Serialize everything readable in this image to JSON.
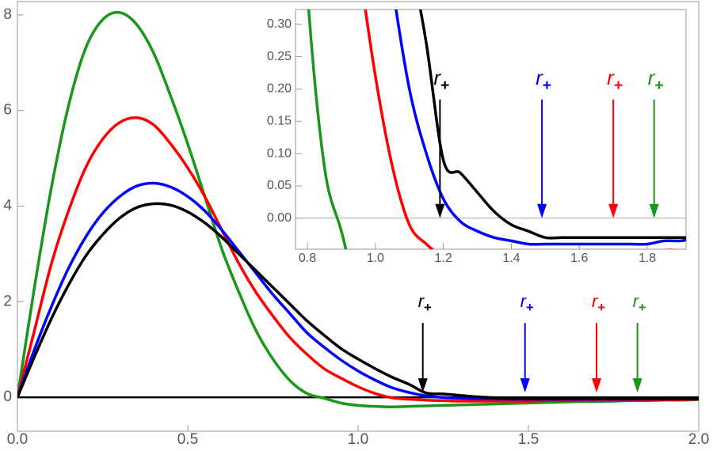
{
  "chart_data": [
    {
      "type": "line",
      "x": [
        0,
        0.05,
        0.1,
        0.15,
        0.2,
        0.25,
        0.3,
        0.35,
        0.4,
        0.45,
        0.5,
        0.55,
        0.6,
        0.65,
        0.7,
        0.75,
        0.8,
        0.85,
        0.9,
        0.95,
        1.0,
        1.05,
        1.1,
        1.15,
        1.2,
        1.25,
        1.3,
        1.35,
        1.4,
        1.45,
        1.5,
        1.55,
        1.6,
        1.65,
        1.7,
        1.75,
        1.8,
        1.85,
        1.9,
        1.95,
        2.0
      ],
      "series": [
        {
          "color": "#1a961a",
          "values": [
            0,
            2.3,
            4.4,
            6.1,
            7.3,
            7.9,
            8.05,
            7.8,
            7.2,
            6.3,
            5.3,
            4.2,
            3.1,
            2.2,
            1.4,
            0.8,
            0.35,
            0.08,
            -0.02,
            -0.12,
            -0.17,
            -0.19,
            -0.2,
            -0.19,
            -0.18,
            -0.17,
            -0.16,
            -0.15,
            -0.14,
            -0.13,
            -0.12,
            -0.11,
            -0.1,
            -0.09,
            -0.09,
            -0.08,
            -0.07,
            -0.07,
            -0.06,
            -0.06,
            -0.05
          ]
        },
        {
          "color": "#ff0000",
          "values": [
            0,
            1.4,
            2.8,
            3.9,
            4.8,
            5.4,
            5.75,
            5.85,
            5.7,
            5.3,
            4.8,
            4.2,
            3.5,
            2.8,
            2.2,
            1.7,
            1.25,
            0.9,
            0.6,
            0.4,
            0.22,
            0.08,
            -0.01,
            -0.04,
            -0.06,
            -0.07,
            -0.08,
            -0.08,
            -0.08,
            -0.08,
            -0.08,
            -0.07,
            -0.07,
            -0.07,
            -0.06,
            -0.06,
            -0.06,
            -0.05,
            -0.05,
            -0.05,
            -0.04
          ]
        },
        {
          "color": "#0000ff",
          "values": [
            0,
            1.0,
            1.9,
            2.7,
            3.35,
            3.85,
            4.2,
            4.42,
            4.48,
            4.4,
            4.2,
            3.9,
            3.5,
            3.05,
            2.6,
            2.15,
            1.75,
            1.35,
            1.05,
            0.78,
            0.55,
            0.36,
            0.2,
            0.1,
            0.03,
            -0.005,
            -0.02,
            -0.03,
            -0.035,
            -0.04,
            -0.04,
            -0.04,
            -0.04,
            -0.04,
            -0.04,
            -0.04,
            -0.04,
            -0.035,
            -0.035,
            -0.03,
            -0.03
          ]
        },
        {
          "color": "#000000",
          "values": [
            0,
            0.85,
            1.65,
            2.35,
            2.95,
            3.4,
            3.75,
            3.97,
            4.05,
            4.02,
            3.88,
            3.65,
            3.35,
            3.0,
            2.65,
            2.3,
            1.95,
            1.6,
            1.3,
            1.02,
            0.8,
            0.6,
            0.42,
            0.27,
            0.09,
            0.07,
            0.04,
            0.01,
            -0.01,
            -0.02,
            -0.03,
            -0.03,
            -0.03,
            -0.03,
            -0.03,
            -0.03,
            -0.03,
            -0.03,
            -0.03,
            -0.03,
            -0.03
          ]
        }
      ],
      "markers": [
        {
          "x": 1.19,
          "color": "#000000",
          "label": "r",
          "sub": "+"
        },
        {
          "x": 1.49,
          "color": "#0000ff",
          "label": "r",
          "sub": "+"
        },
        {
          "x": 1.7,
          "color": "#ff0000",
          "label": "r",
          "sub": "+"
        },
        {
          "x": 1.82,
          "color": "#1a961a",
          "label": "r",
          "sub": "+"
        }
      ],
      "xlim": [
        0,
        2
      ],
      "ylim": [
        -0.71,
        8.28
      ],
      "xticks": [
        {
          "value": 0,
          "label": "0.0"
        },
        {
          "value": 0.5,
          "label": "0.5"
        },
        {
          "value": 1,
          "label": "1.0"
        },
        {
          "value": 1.5,
          "label": "1.5"
        },
        {
          "value": 2,
          "label": "2.0"
        }
      ],
      "yticks": [
        0,
        2,
        4,
        6,
        8
      ]
    },
    {
      "type": "line",
      "xlim": [
        0.765,
        1.914
      ],
      "ylim": [
        -0.048,
        0.323
      ],
      "xticks": [
        {
          "value": 0.8,
          "label": "0.8"
        },
        {
          "value": 1.0,
          "label": "1.0"
        },
        {
          "value": 1.2,
          "label": "1.2"
        },
        {
          "value": 1.4,
          "label": "1.4"
        },
        {
          "value": 1.6,
          "label": "1.6"
        },
        {
          "value": 1.8,
          "label": "1.8"
        }
      ],
      "yticks": [
        {
          "value": 0,
          "label": "0.00"
        },
        {
          "value": 0.05,
          "label": "0.05"
        },
        {
          "value": 0.1,
          "label": "0.10"
        },
        {
          "value": 0.15,
          "label": "0.15"
        },
        {
          "value": 0.2,
          "label": "0.20"
        },
        {
          "value": 0.25,
          "label": "0.25"
        },
        {
          "value": 0.3,
          "label": "0.30"
        }
      ]
    }
  ]
}
